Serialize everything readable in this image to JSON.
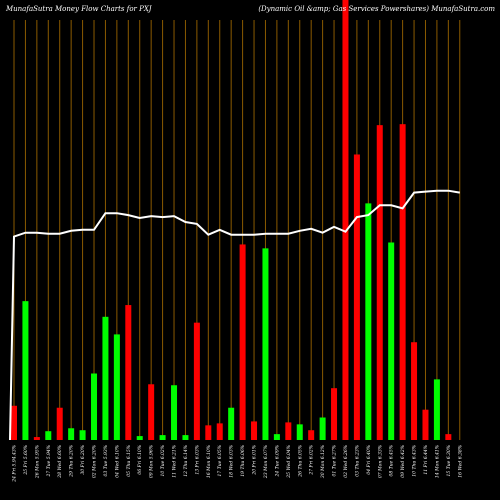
{
  "header": {
    "left": "MunafaSutra  Money Flow  Charts for PXJ",
    "right": "(Dynamic Oil &amp; Gas Services Powershares) MunafaSutra.com"
  },
  "colors": {
    "background": "#000000",
    "up": "#00ff00",
    "down": "#ff0000",
    "grid": "#8a5a00",
    "line": "#ffffff"
  },
  "chart_data": {
    "type": "bar",
    "categories": [
      "24 Fri 5.94.43%",
      "25 Fri 5.60%",
      "26 Mon 5.95%",
      "27 Tue 5.94%",
      "28 Wed 6.60%",
      "29 Thu 6.20%",
      "30 Fri 6.20%",
      "02 Mon 6.20%",
      "03 Tue 5.93%",
      "04 Wed 6.10%",
      "05 Thu 6.15%",
      "06 Fri 6.10%",
      "09 Mon 5.96%",
      "10 Tue 6.02%",
      "11 Wed 6.21%",
      "12 Thu 6.14%",
      "13 Fri 6.03%",
      "16 Mon 6.10%",
      "17 Tue 6.05%",
      "18 Wed 6.03%",
      "19 Thu 6.06%",
      "20 Fri 6.01%",
      "23 Mon 6.07%",
      "24 Tue 6.09%",
      "25 Wed 6.04%",
      "26 Thu 6.05%",
      "27 Fri 6.02%",
      "30 Mon 6.12%",
      "01 Tue 6.27%",
      "02 Wed 6.26%",
      "03 Thu 6.23%",
      "04 Fri 6.40%",
      "07 Mon 6.33%",
      "08 Tue 6.45%",
      "09 Wed 6.42%",
      "10 Thu 6.43%",
      "11 Fri 6.44%",
      "14 Mon 6.41%",
      "15 Tue 6.30%",
      "16 Wed 6.38%"
    ],
    "colors": [
      "red",
      "green",
      "red",
      "green",
      "red",
      "green",
      "green",
      "green",
      "green",
      "green",
      "red",
      "green",
      "red",
      "green",
      "green",
      "green",
      "red",
      "red",
      "red",
      "green",
      "red",
      "red",
      "green",
      "green",
      "red",
      "green",
      "red",
      "green",
      "red",
      "red",
      "red",
      "green",
      "red",
      "green",
      "red",
      "red",
      "red",
      "green",
      "red",
      "green"
    ],
    "values": [
      35,
      142,
      3,
      9,
      33,
      12,
      10,
      68,
      126,
      108,
      138,
      4,
      57,
      5,
      56,
      5,
      120,
      15,
      17,
      33,
      200,
      19,
      196,
      6,
      18,
      16,
      10,
      23,
      53,
      450,
      292,
      242,
      322,
      202,
      323,
      100,
      31,
      62,
      6,
      0
    ],
    "line": [
      208,
      212,
      212,
      211,
      211,
      214,
      215,
      215,
      232,
      232,
      230,
      227,
      229,
      228,
      229,
      223,
      221,
      210,
      215,
      210,
      210,
      210,
      211,
      211,
      211,
      214,
      216,
      212,
      218,
      213,
      228,
      230,
      240,
      240,
      237,
      253,
      254,
      255,
      255,
      253
    ],
    "ylim": [
      0,
      450
    ],
    "title": "",
    "xlabel": "",
    "ylabel": ""
  }
}
